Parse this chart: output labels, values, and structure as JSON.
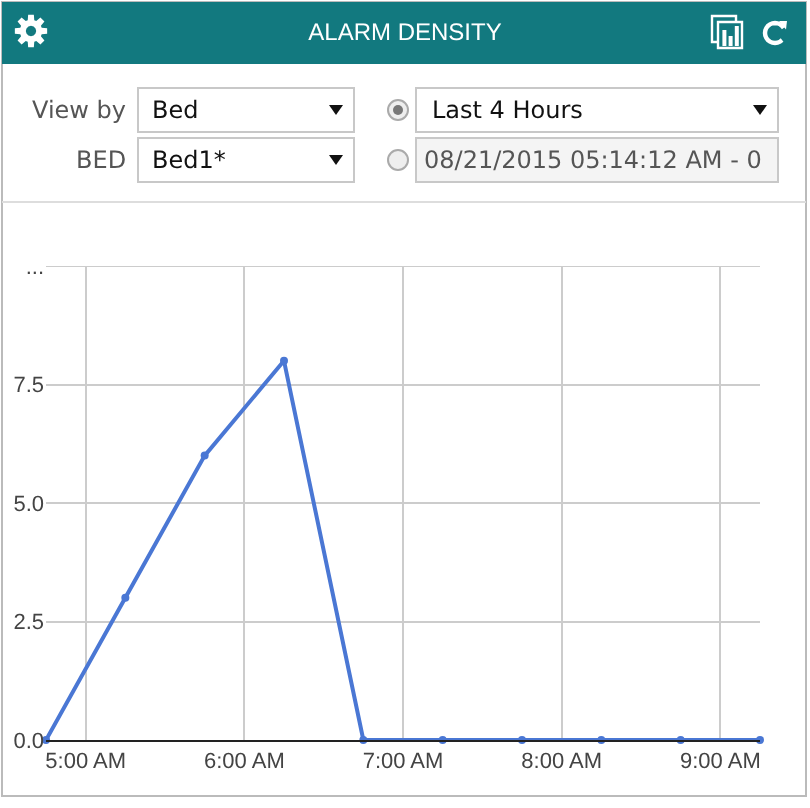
{
  "chart_data": {
    "type": "line",
    "title": "ALARM DENSITY",
    "annotations": [
      "View by",
      "Bed",
      "BED",
      "Bed1*",
      "Last 4 Hours",
      "08/21/2015 05:14:12 AM - 0"
    ],
    "x": [
      4.75,
      5.25,
      5.75,
      6.25,
      6.75,
      7.25,
      7.75,
      8.25,
      8.75,
      9.25
    ],
    "series": [
      {
        "color": "#4a77d4",
        "values": [
          0,
          3,
          6,
          8,
          0,
          0,
          0,
          0,
          0,
          0
        ]
      }
    ],
    "xlim": [
      4.75,
      9.25
    ],
    "xticks": [
      {
        "value": 5,
        "label": "5:00 AM"
      },
      {
        "value": 6,
        "label": "6:00 AM"
      },
      {
        "value": 7,
        "label": "7:00 AM"
      },
      {
        "value": 8,
        "label": "8:00 AM"
      },
      {
        "value": 9,
        "label": "9:00 AM"
      }
    ],
    "ylim": [
      0,
      10
    ],
    "yticks": [
      {
        "value": 0,
        "label": "0.0"
      },
      2.5,
      {
        "value": 5,
        "label": "5.0"
      },
      7.5,
      {
        "value": 10,
        "label": "..."
      }
    ],
    "grid": true,
    "marker": "circle",
    "line_style": "solid"
  }
}
